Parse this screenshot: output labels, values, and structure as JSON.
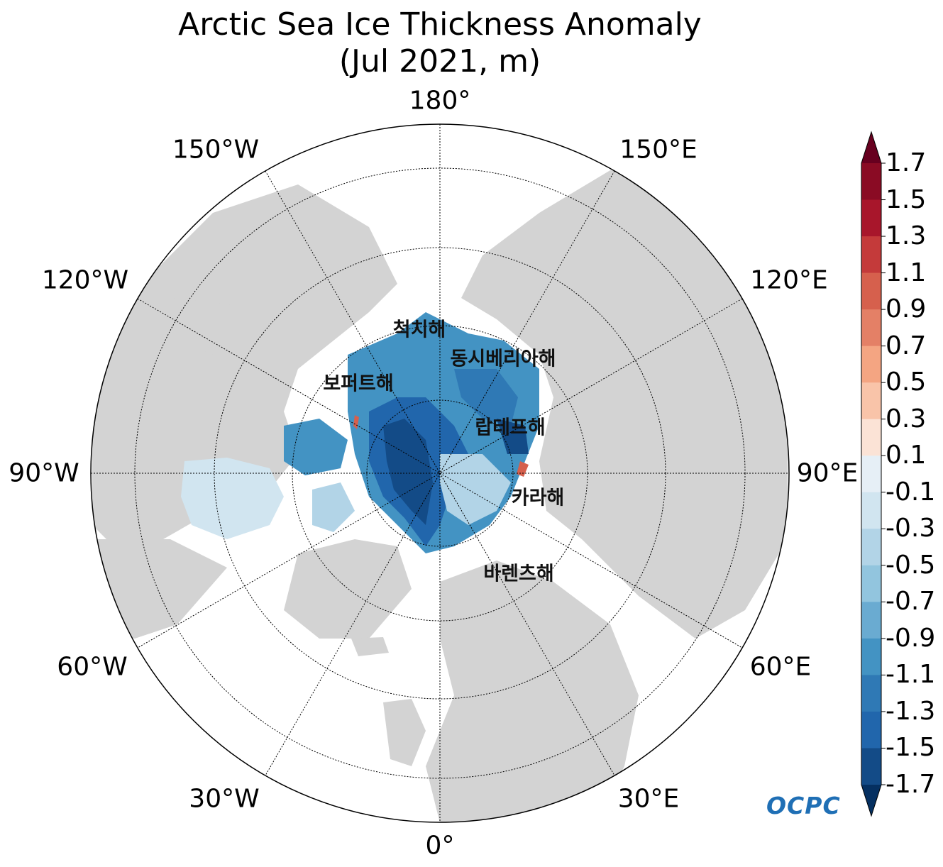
{
  "title": {
    "line1": "Arctic Sea Ice Thickness Anomaly",
    "line2": "(Jul 2021, m)"
  },
  "longitude_labels": [
    "180°",
    "150°E",
    "120°E",
    "90°E",
    "60°E",
    "30°E",
    "0°",
    "30°W",
    "60°W",
    "90°W",
    "120°W",
    "150°W"
  ],
  "sea_labels": [
    "척치해",
    "동시베리아해",
    "보퍼트해",
    "랍테프해",
    "카라해",
    "바렌츠해"
  ],
  "colorbar": {
    "ticks": [
      "1.7",
      "1.5",
      "1.3",
      "1.1",
      "0.9",
      "0.7",
      "0.5",
      "0.3",
      "0.1",
      "-0.1",
      "-0.3",
      "-0.5",
      "-0.7",
      "-0.9",
      "-1.1",
      "-1.3",
      "-1.5",
      "-1.7"
    ],
    "colors_top_to_bottom": [
      "#8a0b24",
      "#a8162b",
      "#c43a3a",
      "#d6604d",
      "#e48066",
      "#f4a582",
      "#f9c4a9",
      "#fbe3d6",
      "#f7f7f7",
      "#e6eff6",
      "#d1e5f0",
      "#b2d4e7",
      "#92c5de",
      "#6aabd1",
      "#4393c3",
      "#2f79b5",
      "#2166ac",
      "#134b87"
    ],
    "over_color": "#67001f",
    "under_color": "#053061"
  },
  "logo": {
    "text": "OCPC"
  },
  "colors": {
    "land": "#d3d3d3",
    "ocean": "#ffffff",
    "grid": "#000000"
  }
}
